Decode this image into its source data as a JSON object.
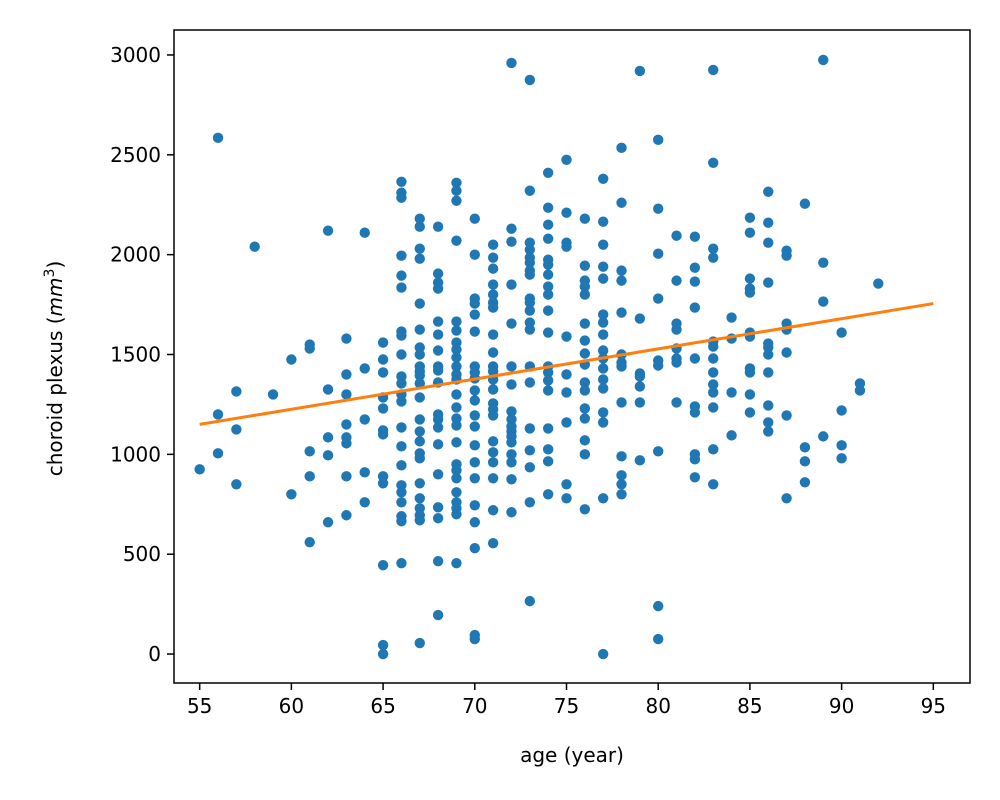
{
  "chart_data": {
    "type": "scatter",
    "xlabel": "age (year)",
    "ylabel": {
      "prefix": "choroid plexus (",
      "unit_main": "mm",
      "unit_sup": "3",
      "suffix": ")"
    },
    "xlim": [
      53.6,
      97.0
    ],
    "ylim": [
      -145,
      3125
    ],
    "xticks": [
      55,
      60,
      65,
      70,
      75,
      80,
      85,
      90,
      95
    ],
    "yticks": [
      0,
      500,
      1000,
      1500,
      2000,
      2500,
      3000
    ],
    "grid": false,
    "legend": "none",
    "colors": {
      "points": "#1f77b4",
      "fit_line": "#ff7f0e"
    },
    "fit_line": {
      "x": [
        55,
        95
      ],
      "y": [
        1150,
        1755
      ]
    },
    "points": [
      [
        55,
        925
      ],
      [
        56,
        2585
      ],
      [
        56,
        1200
      ],
      [
        56,
        1005
      ],
      [
        57,
        1315
      ],
      [
        57,
        1125
      ],
      [
        57,
        850
      ],
      [
        58,
        2040
      ],
      [
        59,
        1300
      ],
      [
        60,
        1475
      ],
      [
        60,
        800
      ],
      [
        61,
        1550
      ],
      [
        61,
        1530
      ],
      [
        61,
        1015
      ],
      [
        61,
        890
      ],
      [
        61,
        560
      ],
      [
        62,
        2120
      ],
      [
        62,
        1325
      ],
      [
        62,
        1085
      ],
      [
        62,
        995
      ],
      [
        62,
        660
      ],
      [
        63,
        1580
      ],
      [
        63,
        1400
      ],
      [
        63,
        1300
      ],
      [
        63,
        1150
      ],
      [
        63,
        1085
      ],
      [
        63,
        1055
      ],
      [
        63,
        890
      ],
      [
        63,
        695
      ],
      [
        64,
        2110
      ],
      [
        64,
        1430
      ],
      [
        64,
        1175
      ],
      [
        64,
        910
      ],
      [
        64,
        760
      ],
      [
        65,
        1560
      ],
      [
        65,
        1475
      ],
      [
        65,
        1410
      ],
      [
        65,
        1285
      ],
      [
        65,
        1230
      ],
      [
        65,
        1120
      ],
      [
        65,
        1100
      ],
      [
        65,
        890
      ],
      [
        65,
        855
      ],
      [
        65,
        445
      ],
      [
        65,
        45
      ],
      [
        65,
        0
      ],
      [
        66,
        2365
      ],
      [
        66,
        2310
      ],
      [
        66,
        2285
      ],
      [
        66,
        1995
      ],
      [
        66,
        1895
      ],
      [
        66,
        1835
      ],
      [
        66,
        1615
      ],
      [
        66,
        1595
      ],
      [
        66,
        1500
      ],
      [
        66,
        1390
      ],
      [
        66,
        1355
      ],
      [
        66,
        1300
      ],
      [
        66,
        1265
      ],
      [
        66,
        1135
      ],
      [
        66,
        1040
      ],
      [
        66,
        945
      ],
      [
        66,
        845
      ],
      [
        66,
        810
      ],
      [
        66,
        760
      ],
      [
        66,
        690
      ],
      [
        66,
        665
      ],
      [
        66,
        455
      ],
      [
        67,
        2180
      ],
      [
        67,
        2140
      ],
      [
        67,
        2030
      ],
      [
        67,
        1980
      ],
      [
        67,
        1755
      ],
      [
        67,
        1625
      ],
      [
        67,
        1535
      ],
      [
        67,
        1500
      ],
      [
        67,
        1440
      ],
      [
        67,
        1415
      ],
      [
        67,
        1395
      ],
      [
        67,
        1355
      ],
      [
        67,
        1285
      ],
      [
        67,
        1175
      ],
      [
        67,
        1115
      ],
      [
        67,
        1065
      ],
      [
        67,
        1005
      ],
      [
        67,
        980
      ],
      [
        67,
        855
      ],
      [
        67,
        780
      ],
      [
        67,
        730
      ],
      [
        67,
        695
      ],
      [
        67,
        670
      ],
      [
        67,
        55
      ],
      [
        68,
        2140
      ],
      [
        68,
        1905
      ],
      [
        68,
        1860
      ],
      [
        68,
        1830
      ],
      [
        68,
        1665
      ],
      [
        68,
        1600
      ],
      [
        68,
        1520
      ],
      [
        68,
        1440
      ],
      [
        68,
        1420
      ],
      [
        68,
        1360
      ],
      [
        68,
        1200
      ],
      [
        68,
        1175
      ],
      [
        68,
        1135
      ],
      [
        68,
        1050
      ],
      [
        68,
        900
      ],
      [
        68,
        735
      ],
      [
        68,
        680
      ],
      [
        68,
        465
      ],
      [
        68,
        195
      ],
      [
        69,
        2360
      ],
      [
        69,
        2320
      ],
      [
        69,
        2270
      ],
      [
        69,
        2070
      ],
      [
        69,
        1665
      ],
      [
        69,
        1620
      ],
      [
        69,
        1560
      ],
      [
        69,
        1525
      ],
      [
        69,
        1485
      ],
      [
        69,
        1440
      ],
      [
        69,
        1400
      ],
      [
        69,
        1375
      ],
      [
        69,
        1300
      ],
      [
        69,
        1235
      ],
      [
        69,
        1180
      ],
      [
        69,
        1145
      ],
      [
        69,
        1060
      ],
      [
        69,
        950
      ],
      [
        69,
        920
      ],
      [
        69,
        880
      ],
      [
        69,
        810
      ],
      [
        69,
        760
      ],
      [
        69,
        730
      ],
      [
        69,
        700
      ],
      [
        69,
        455
      ],
      [
        70,
        2180
      ],
      [
        70,
        2000
      ],
      [
        70,
        1780
      ],
      [
        70,
        1755
      ],
      [
        70,
        1700
      ],
      [
        70,
        1615
      ],
      [
        70,
        1440
      ],
      [
        70,
        1410
      ],
      [
        70,
        1380
      ],
      [
        70,
        1320
      ],
      [
        70,
        1270
      ],
      [
        70,
        1195
      ],
      [
        70,
        1140
      ],
      [
        70,
        1045
      ],
      [
        70,
        960
      ],
      [
        70,
        880
      ],
      [
        70,
        745
      ],
      [
        70,
        660
      ],
      [
        70,
        530
      ],
      [
        70,
        95
      ],
      [
        70,
        75
      ],
      [
        71,
        2050
      ],
      [
        71,
        1985
      ],
      [
        71,
        1930
      ],
      [
        71,
        1850
      ],
      [
        71,
        1800
      ],
      [
        71,
        1760
      ],
      [
        71,
        1735
      ],
      [
        71,
        1600
      ],
      [
        71,
        1510
      ],
      [
        71,
        1440
      ],
      [
        71,
        1415
      ],
      [
        71,
        1375
      ],
      [
        71,
        1325
      ],
      [
        71,
        1255
      ],
      [
        71,
        1225
      ],
      [
        71,
        1195
      ],
      [
        71,
        1065
      ],
      [
        71,
        1010
      ],
      [
        71,
        960
      ],
      [
        71,
        880
      ],
      [
        71,
        720
      ],
      [
        71,
        555
      ],
      [
        72,
        2960
      ],
      [
        72,
        2130
      ],
      [
        72,
        2065
      ],
      [
        72,
        1850
      ],
      [
        72,
        1655
      ],
      [
        72,
        1440
      ],
      [
        72,
        1350
      ],
      [
        72,
        1215
      ],
      [
        72,
        1175
      ],
      [
        72,
        1140
      ],
      [
        72,
        1115
      ],
      [
        72,
        1090
      ],
      [
        72,
        1060
      ],
      [
        72,
        1000
      ],
      [
        72,
        960
      ],
      [
        72,
        875
      ],
      [
        72,
        710
      ],
      [
        73,
        2875
      ],
      [
        73,
        2320
      ],
      [
        73,
        2060
      ],
      [
        73,
        2025
      ],
      [
        73,
        1985
      ],
      [
        73,
        1960
      ],
      [
        73,
        1920
      ],
      [
        73,
        1900
      ],
      [
        73,
        1780
      ],
      [
        73,
        1760
      ],
      [
        73,
        1720
      ],
      [
        73,
        1660
      ],
      [
        73,
        1625
      ],
      [
        73,
        1440
      ],
      [
        73,
        1360
      ],
      [
        73,
        1130
      ],
      [
        73,
        1020
      ],
      [
        73,
        935
      ],
      [
        73,
        760
      ],
      [
        73,
        265
      ],
      [
        74,
        2410
      ],
      [
        74,
        2235
      ],
      [
        74,
        2150
      ],
      [
        74,
        2080
      ],
      [
        74,
        1975
      ],
      [
        74,
        1950
      ],
      [
        74,
        1900
      ],
      [
        74,
        1840
      ],
      [
        74,
        1800
      ],
      [
        74,
        1720
      ],
      [
        74,
        1610
      ],
      [
        74,
        1440
      ],
      [
        74,
        1410
      ],
      [
        74,
        1370
      ],
      [
        74,
        1320
      ],
      [
        74,
        1130
      ],
      [
        74,
        1025
      ],
      [
        74,
        965
      ],
      [
        74,
        800
      ],
      [
        75,
        2475
      ],
      [
        75,
        2210
      ],
      [
        75,
        2060
      ],
      [
        75,
        2040
      ],
      [
        75,
        1590
      ],
      [
        75,
        1400
      ],
      [
        75,
        1310
      ],
      [
        75,
        1160
      ],
      [
        75,
        850
      ],
      [
        75,
        780
      ],
      [
        76,
        2180
      ],
      [
        76,
        1945
      ],
      [
        76,
        1870
      ],
      [
        76,
        1840
      ],
      [
        76,
        1800
      ],
      [
        76,
        1655
      ],
      [
        76,
        1570
      ],
      [
        76,
        1505
      ],
      [
        76,
        1450
      ],
      [
        76,
        1360
      ],
      [
        76,
        1320
      ],
      [
        76,
        1230
      ],
      [
        76,
        1180
      ],
      [
        76,
        1070
      ],
      [
        76,
        1000
      ],
      [
        76,
        725
      ],
      [
        77,
        2380
      ],
      [
        77,
        2165
      ],
      [
        77,
        2050
      ],
      [
        77,
        1940
      ],
      [
        77,
        1880
      ],
      [
        77,
        1700
      ],
      [
        77,
        1660
      ],
      [
        77,
        1600
      ],
      [
        77,
        1520
      ],
      [
        77,
        1480
      ],
      [
        77,
        1430
      ],
      [
        77,
        1375
      ],
      [
        77,
        1330
      ],
      [
        77,
        1210
      ],
      [
        77,
        1160
      ],
      [
        77,
        780
      ],
      [
        77,
        0
      ],
      [
        78,
        2535
      ],
      [
        78,
        2260
      ],
      [
        78,
        1920
      ],
      [
        78,
        1870
      ],
      [
        78,
        1710
      ],
      [
        78,
        1500
      ],
      [
        78,
        1460
      ],
      [
        78,
        1440
      ],
      [
        78,
        1260
      ],
      [
        78,
        990
      ],
      [
        78,
        895
      ],
      [
        78,
        850
      ],
      [
        78,
        800
      ],
      [
        79,
        2920
      ],
      [
        79,
        1680
      ],
      [
        79,
        1405
      ],
      [
        79,
        1390
      ],
      [
        79,
        1340
      ],
      [
        79,
        1260
      ],
      [
        79,
        970
      ],
      [
        80,
        2575
      ],
      [
        80,
        2230
      ],
      [
        80,
        2005
      ],
      [
        80,
        1780
      ],
      [
        80,
        1470
      ],
      [
        80,
        1445
      ],
      [
        80,
        1015
      ],
      [
        80,
        240
      ],
      [
        80,
        75
      ],
      [
        81,
        2095
      ],
      [
        81,
        1870
      ],
      [
        81,
        1655
      ],
      [
        81,
        1625
      ],
      [
        81,
        1530
      ],
      [
        81,
        1480
      ],
      [
        81,
        1460
      ],
      [
        81,
        1260
      ],
      [
        82,
        2090
      ],
      [
        82,
        1935
      ],
      [
        82,
        1865
      ],
      [
        82,
        1735
      ],
      [
        82,
        1480
      ],
      [
        82,
        1240
      ],
      [
        82,
        1210
      ],
      [
        82,
        1000
      ],
      [
        82,
        975
      ],
      [
        82,
        885
      ],
      [
        83,
        2925
      ],
      [
        83,
        2460
      ],
      [
        83,
        2030
      ],
      [
        83,
        1985
      ],
      [
        83,
        1565
      ],
      [
        83,
        1540
      ],
      [
        83,
        1480
      ],
      [
        83,
        1410
      ],
      [
        83,
        1350
      ],
      [
        83,
        1310
      ],
      [
        83,
        1235
      ],
      [
        83,
        1025
      ],
      [
        83,
        850
      ],
      [
        84,
        1685
      ],
      [
        84,
        1580
      ],
      [
        84,
        1310
      ],
      [
        84,
        1095
      ],
      [
        85,
        2185
      ],
      [
        85,
        2110
      ],
      [
        85,
        1880
      ],
      [
        85,
        1830
      ],
      [
        85,
        1810
      ],
      [
        85,
        1610
      ],
      [
        85,
        1590
      ],
      [
        85,
        1430
      ],
      [
        85,
        1410
      ],
      [
        85,
        1300
      ],
      [
        85,
        1210
      ],
      [
        86,
        2315
      ],
      [
        86,
        2160
      ],
      [
        86,
        2060
      ],
      [
        86,
        1860
      ],
      [
        86,
        1555
      ],
      [
        86,
        1535
      ],
      [
        86,
        1500
      ],
      [
        86,
        1410
      ],
      [
        86,
        1245
      ],
      [
        86,
        1160
      ],
      [
        86,
        1115
      ],
      [
        87,
        2020
      ],
      [
        87,
        1995
      ],
      [
        87,
        1655
      ],
      [
        87,
        1625
      ],
      [
        87,
        1510
      ],
      [
        87,
        1195
      ],
      [
        87,
        780
      ],
      [
        88,
        2255
      ],
      [
        88,
        1035
      ],
      [
        88,
        965
      ],
      [
        88,
        860
      ],
      [
        89,
        2975
      ],
      [
        89,
        1960
      ],
      [
        89,
        1765
      ],
      [
        89,
        1090
      ],
      [
        90,
        1610
      ],
      [
        90,
        1220
      ],
      [
        90,
        1045
      ],
      [
        90,
        980
      ],
      [
        91,
        1355
      ],
      [
        91,
        1320
      ],
      [
        92,
        1855
      ]
    ]
  }
}
